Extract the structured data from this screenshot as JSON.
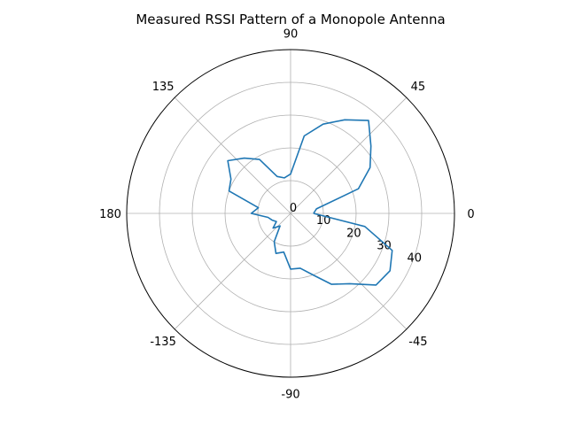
{
  "chart_data": {
    "type": "line",
    "projection": "polar",
    "title": "Measured RSSI Pattern of a Monopole Antenna",
    "angle_unit": "degrees",
    "angle_ticks": [
      0,
      45,
      90,
      135,
      180,
      -135,
      -90,
      -45
    ],
    "angle_tick_labels": [
      "0",
      "45",
      "90",
      "135",
      "180",
      "-135",
      "-90",
      "-45"
    ],
    "radial_ticks": [
      0,
      10,
      20,
      30,
      40
    ],
    "radial_tick_labels": [
      "0",
      "10",
      "20",
      "30",
      "40"
    ],
    "rlim": [
      0,
      50
    ],
    "grid": true,
    "series_color": "#1f77b4",
    "series": [
      {
        "angles": [
          0,
          10,
          20,
          30,
          40,
          50,
          60,
          70,
          80,
          90,
          100,
          110,
          120,
          130,
          140,
          150,
          160,
          170,
          180,
          190,
          200,
          210,
          220,
          230,
          240,
          250,
          260,
          270,
          280,
          290,
          300,
          310,
          320,
          330,
          340,
          350,
          360
        ],
        "values": [
          7,
          8,
          22,
          28,
          32,
          37,
          33,
          29,
          24,
          12,
          11,
          12,
          19,
          22,
          25,
          21,
          20,
          10,
          12,
          7,
          6,
          5,
          7,
          5,
          10,
          13,
          12,
          17,
          17,
          20,
          25,
          28,
          34,
          35,
          33,
          23,
          7
        ]
      }
    ]
  }
}
